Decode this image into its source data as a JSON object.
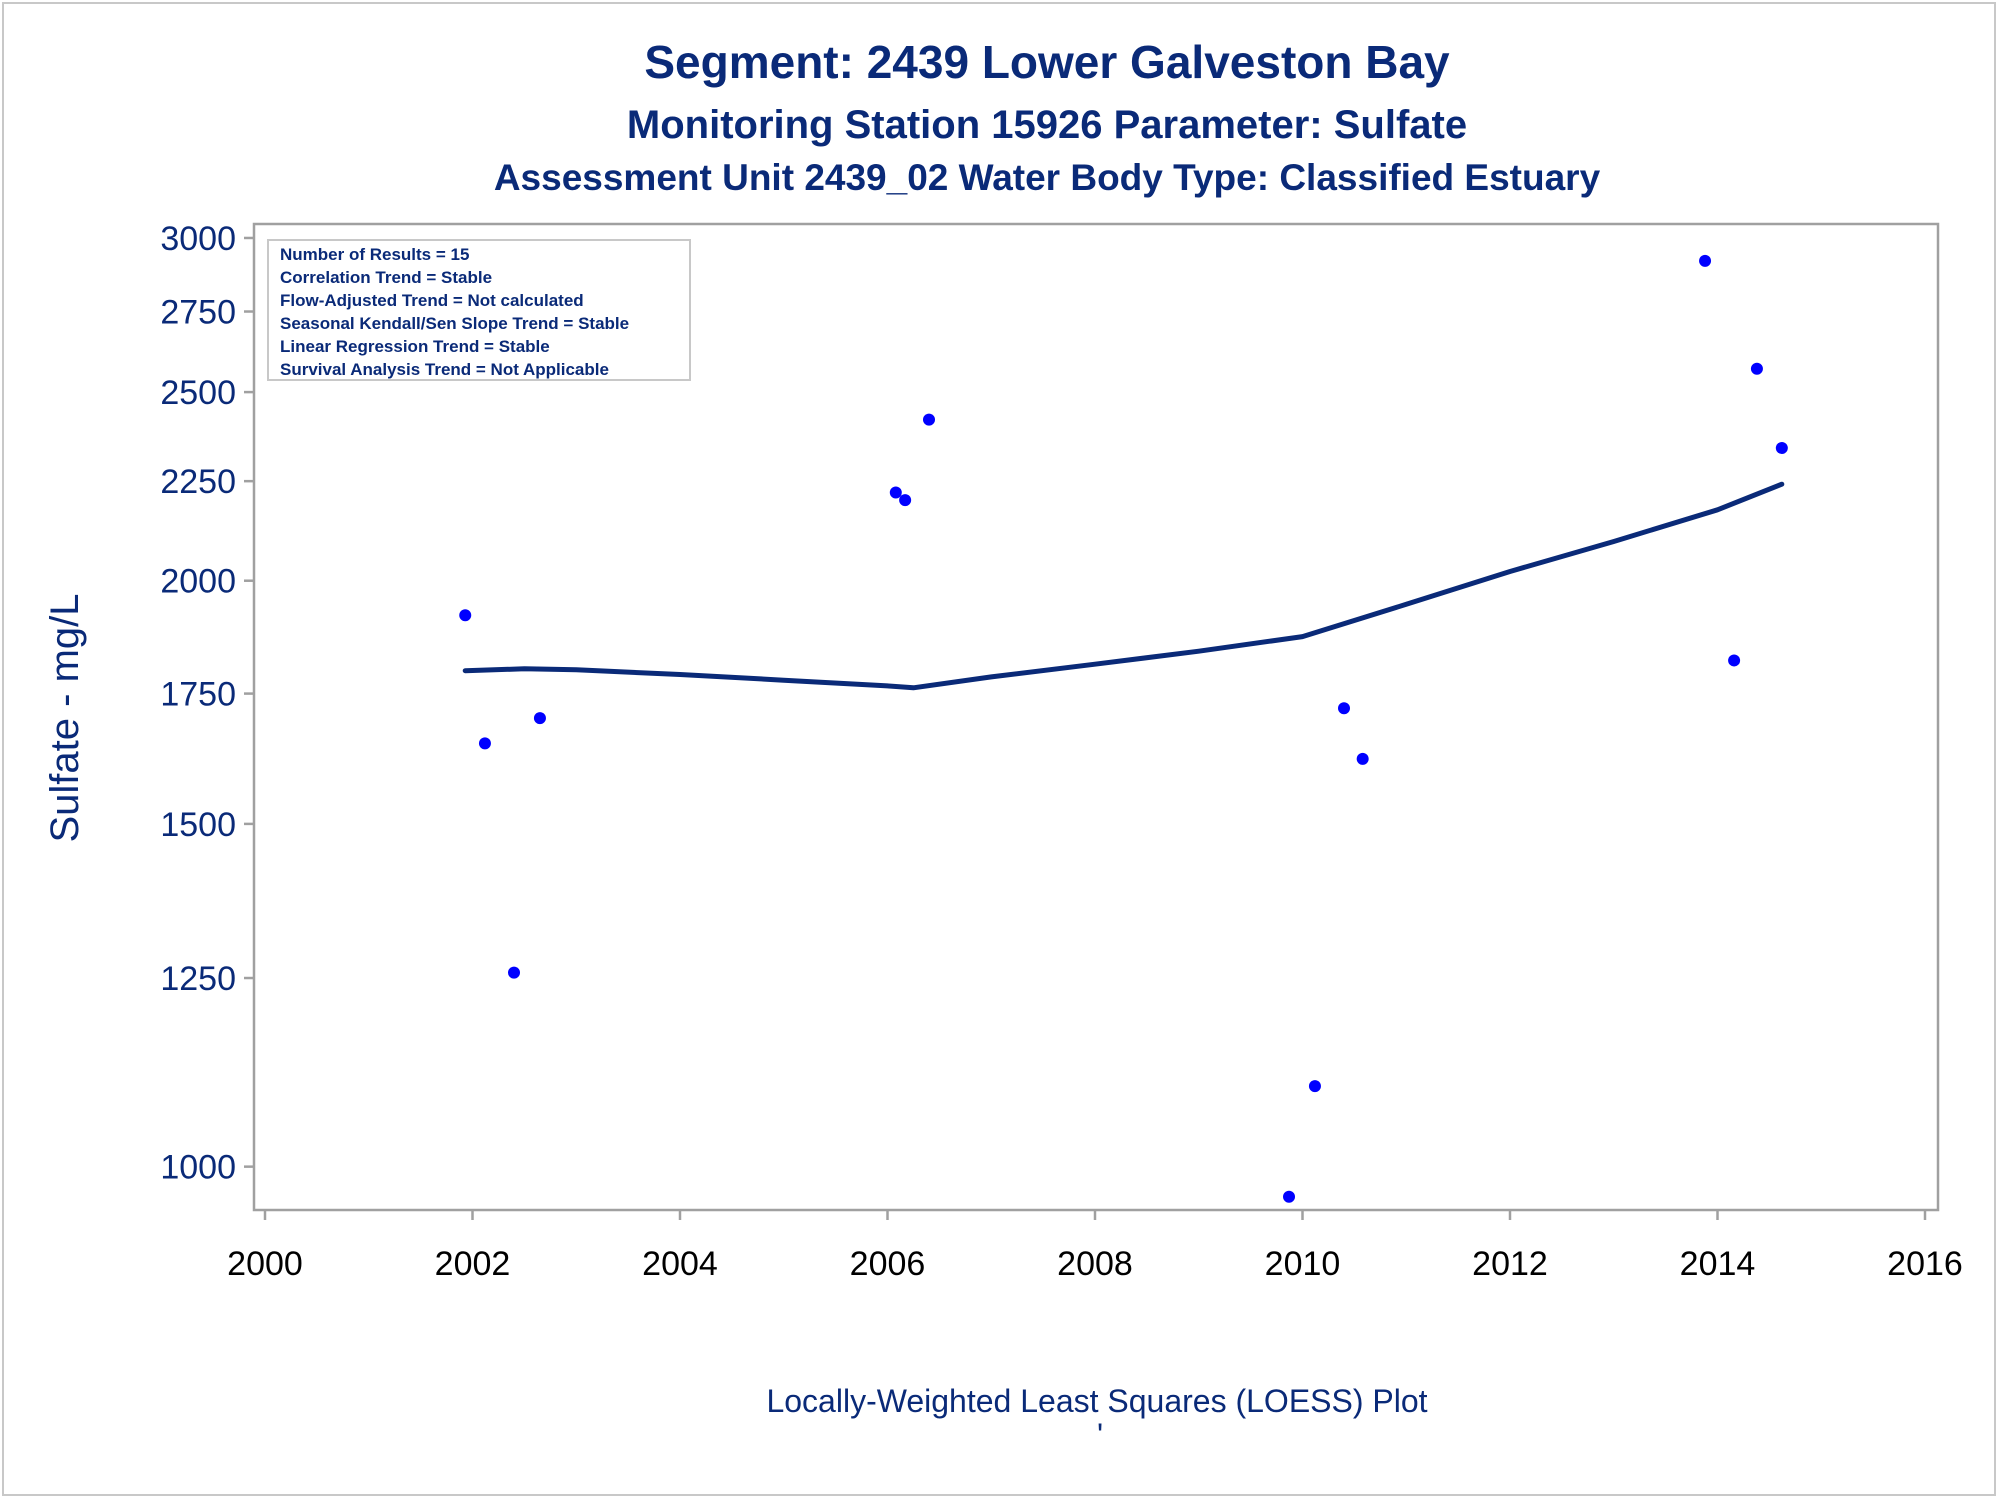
{
  "chart_data": {
    "type": "scatter",
    "title": "Segment: 2439  Lower Galveston Bay",
    "subtitle": "Monitoring Station 15926 Parameter: Sulfate",
    "subtitle2": "Assessment Unit 2439_02   Water Body Type: Classified Estuary",
    "xlabel": "",
    "ylabel": "Sulfate - mg/L",
    "footnote": "Locally-Weighted Least Squares (LOESS) Plot",
    "footnote_mark": "'",
    "y_scale": "log",
    "xlim": [
      2000,
      2016
    ],
    "ylim": [
      950,
      3050
    ],
    "x_ticks": [
      2000,
      2002,
      2004,
      2006,
      2008,
      2010,
      2012,
      2014,
      2016
    ],
    "y_ticks": [
      1000,
      1250,
      1500,
      1750,
      2000,
      2250,
      2500,
      2750,
      3000
    ],
    "grid": false,
    "stats_box": {
      "placement": "top-left",
      "lines": [
        "Number of Results = 15",
        "Correlation Trend = Stable",
        "Flow-Adjusted Trend = Not calculated",
        "Seasonal Kendall/Sen Slope Trend = Stable",
        "Linear Regression Trend = Stable",
        "Survival Analysis Trend = Not Applicable"
      ]
    },
    "series": [
      {
        "kind": "points",
        "color": "#0000ff",
        "x": [
          2001.93,
          2002.12,
          2002.4,
          2002.65,
          2006.08,
          2006.17,
          2006.4,
          2009.87,
          2010.12,
          2010.4,
          2010.58,
          2013.88,
          2014.16,
          2014.38,
          2014.62
        ],
        "y": [
          1920,
          1650,
          1258,
          1700,
          2220,
          2200,
          2420,
          965,
          1100,
          1720,
          1620,
          2920,
          1820,
          2570,
          2340
        ]
      },
      {
        "kind": "loess",
        "color": "#0a2a78",
        "x": [
          2001.93,
          2002.5,
          2003.0,
          2004.0,
          2005.0,
          2006.0,
          2006.25,
          2007.0,
          2008.0,
          2009.0,
          2010.0,
          2011.0,
          2012.0,
          2013.0,
          2014.0,
          2014.62
        ],
        "y": [
          1798,
          1802,
          1800,
          1790,
          1778,
          1766,
          1762,
          1785,
          1812,
          1840,
          1872,
          1945,
          2022,
          2095,
          2175,
          2242
        ]
      }
    ]
  }
}
